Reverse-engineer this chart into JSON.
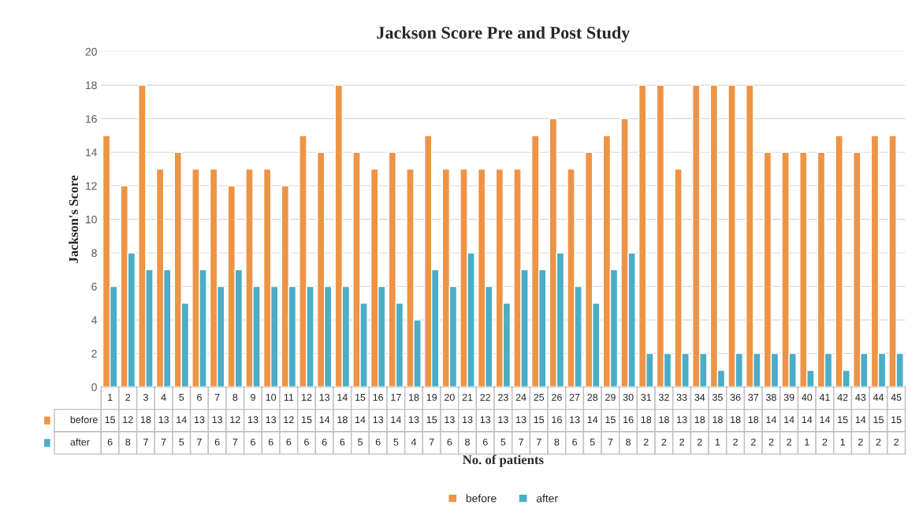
{
  "chart_data": {
    "type": "bar",
    "title": "Jackson Score Pre and Post Study",
    "xlabel": "No. of patients",
    "ylabel": "Jackson's Score",
    "categories": [
      "1",
      "2",
      "3",
      "4",
      "5",
      "6",
      "7",
      "8",
      "9",
      "10",
      "11",
      "12",
      "13",
      "14",
      "15",
      "16",
      "17",
      "18",
      "19",
      "20",
      "21",
      "22",
      "23",
      "24",
      "25",
      "26",
      "27",
      "28",
      "29",
      "30",
      "31",
      "32",
      "33",
      "34",
      "35",
      "36",
      "37",
      "38",
      "39",
      "40",
      "41",
      "42",
      "43",
      "44",
      "45"
    ],
    "series": [
      {
        "name": "before",
        "color": "#ee9446",
        "values": [
          15,
          12,
          18,
          13,
          14,
          13,
          13,
          12,
          13,
          13,
          12,
          15,
          14,
          18,
          14,
          13,
          14,
          13,
          15,
          13,
          13,
          13,
          13,
          13,
          15,
          16,
          13,
          14,
          15,
          16,
          18,
          18,
          13,
          18,
          18,
          18,
          18,
          14,
          14,
          14,
          14,
          15,
          14,
          15,
          15
        ]
      },
      {
        "name": "after",
        "color": "#4badc6",
        "values": [
          6,
          8,
          7,
          7,
          5,
          7,
          6,
          7,
          6,
          6,
          6,
          6,
          6,
          6,
          5,
          6,
          5,
          4,
          7,
          6,
          8,
          6,
          5,
          7,
          7,
          8,
          6,
          5,
          7,
          8,
          2,
          2,
          2,
          2,
          1,
          2,
          2,
          2,
          2,
          1,
          2,
          1,
          2,
          2,
          2
        ]
      }
    ],
    "ylim": [
      0,
      20
    ],
    "yticks": [
      0,
      2,
      4,
      6,
      8,
      10,
      12,
      14,
      16,
      18,
      20
    ],
    "grid": "y",
    "legend": "bottom",
    "data_labels": true
  }
}
